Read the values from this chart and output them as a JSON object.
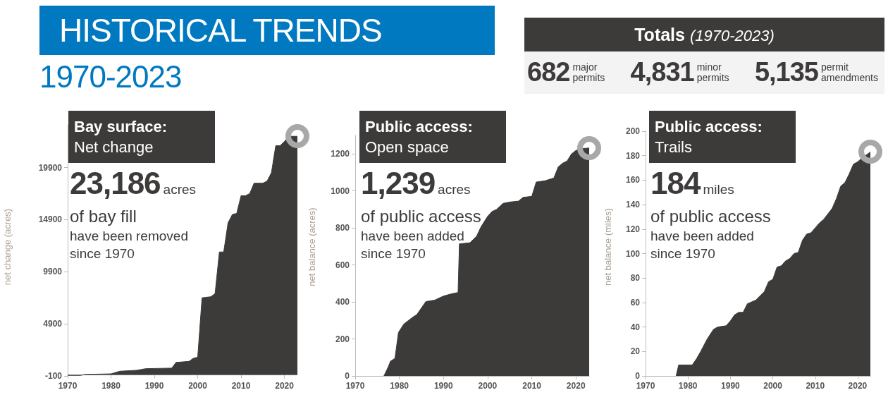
{
  "chart_data": [
    {
      "type": "other",
      "title": "HISTORICAL TRENDS",
      "subtitle": "1970-2023"
    },
    {
      "type": "other",
      "title": "Totals",
      "subtitle": "(1970-2023)",
      "annotations": [
        "682",
        "major permits",
        "4,831",
        "minor permits",
        "5,135",
        "permit amendments"
      ]
    },
    {
      "type": "area",
      "title": "Bay surface:",
      "subtitle": "Net change",
      "ylabel": "net change (acres)",
      "color": "#3d3a3a",
      "annotations": [
        "23,186",
        "acres",
        "of bay fill",
        "have been removed",
        "since 1970"
      ],
      "xlim": [
        1970,
        2023
      ],
      "xticks": [
        1970,
        1980,
        1990,
        2000,
        2010,
        2020
      ],
      "ylim": [
        -100,
        24000
      ],
      "yticks": [
        -100,
        4900,
        9900,
        14900,
        19900
      ],
      "x": [
        1970,
        1973,
        1974,
        1980,
        1982,
        1986,
        1988,
        1994,
        1995,
        1998,
        1999,
        2000,
        2001,
        2003,
        2004,
        2005,
        2006,
        2007,
        2008,
        2009,
        2010,
        2011,
        2012,
        2013,
        2015,
        2016,
        2017,
        2018,
        2019,
        2020,
        2021,
        2023
      ],
      "values": [
        -50,
        -50,
        50,
        100,
        350,
        450,
        600,
        650,
        1200,
        1300,
        1600,
        1700,
        7400,
        7500,
        7800,
        11800,
        11800,
        14600,
        15400,
        15500,
        17200,
        17200,
        17400,
        18400,
        18400,
        18600,
        19400,
        22000,
        22000,
        22400,
        22900,
        22900
      ]
    },
    {
      "type": "area",
      "title": "Public access:",
      "subtitle": "Open space",
      "ylabel": "net balance (acres)",
      "color": "#3d3a3a",
      "annotations": [
        "1,239",
        "acres",
        "of public access",
        "have been added",
        "since 1970"
      ],
      "xlim": [
        1970,
        2023
      ],
      "xticks": [
        1970,
        1980,
        1990,
        2000,
        2010,
        2020
      ],
      "ylim": [
        0,
        1300
      ],
      "yticks": [
        0,
        200,
        400,
        600,
        800,
        1000,
        1200
      ],
      "x": [
        1976.5,
        1977.5,
        1978,
        1979,
        1979.8,
        1981,
        1983,
        1984,
        1986,
        1988,
        1990,
        1992,
        1993.3,
        1993.6,
        1996,
        1997.5,
        1998.5,
        2000,
        2001,
        2002,
        2003.5,
        2005,
        2007,
        2008,
        2010,
        2011,
        2013,
        2015,
        2016,
        2017,
        2018,
        2019,
        2020,
        2021,
        2023
      ],
      "values": [
        0,
        50,
        80,
        95,
        235,
        280,
        317,
        333,
        402,
        410,
        432,
        445,
        451,
        714,
        720,
        755,
        806,
        863,
        889,
        900,
        933,
        940,
        945,
        965,
        971,
        1048,
        1055,
        1070,
        1130,
        1150,
        1162,
        1200,
        1219,
        1228,
        1232
      ]
    },
    {
      "type": "area",
      "title": "Public access:",
      "subtitle": "Trails",
      "ylabel": "net balance (miles)",
      "color": "#3d3a3a",
      "annotations": [
        "184",
        "miles",
        "of public access",
        "have been added",
        "since 1970"
      ],
      "xlim": [
        1970,
        2023
      ],
      "xticks": [
        1970,
        1980,
        1990,
        2000,
        2010,
        2020
      ],
      "ylim": [
        0,
        200
      ],
      "yticks": [
        0,
        20,
        40,
        60,
        80,
        100,
        120,
        140,
        160,
        180,
        200
      ],
      "x": [
        1977.2,
        1977.8,
        1981,
        1982,
        1983,
        1984.5,
        1986,
        1987,
        1989,
        1990,
        1991,
        1992,
        1993,
        1994,
        1996,
        1998,
        1999,
        2000,
        2001,
        2002,
        2003,
        2004,
        2005,
        2006,
        2007,
        2008,
        2009,
        2010,
        2011,
        2012,
        2014,
        2015,
        2016,
        2017,
        2018,
        2019,
        2020,
        2021,
        2023
      ],
      "values": [
        0,
        9,
        9,
        14,
        20,
        30,
        38,
        40,
        41,
        45,
        50,
        52,
        52,
        59,
        62,
        69,
        77,
        79,
        89,
        90,
        94,
        96,
        100,
        101,
        111,
        116,
        117,
        121,
        125,
        128,
        137,
        145,
        155,
        158,
        165,
        173,
        175,
        178,
        183
      ]
    }
  ]
}
